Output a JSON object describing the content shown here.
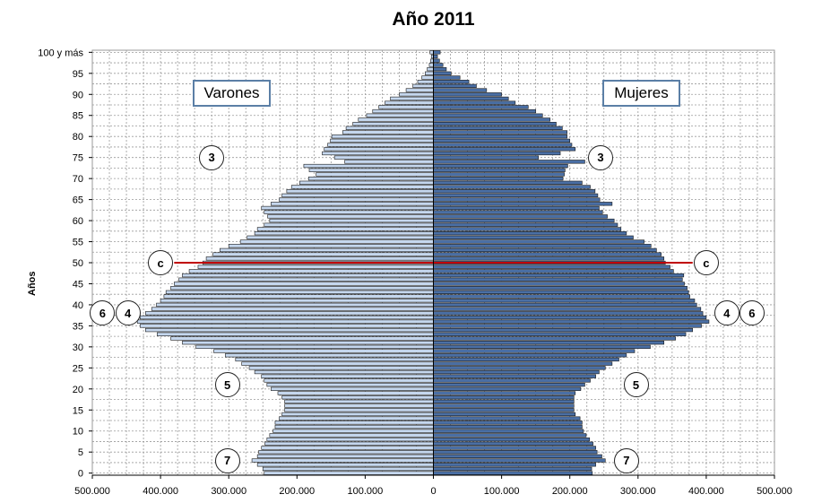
{
  "chart_data": {
    "type": "bar",
    "title": "Año 2011",
    "ylabel": "Años",
    "x_tick_labels": [
      "500.000",
      "400.000",
      "300.000",
      "200.000",
      "100.000",
      "0",
      "100.000",
      "200.000",
      "300.000",
      "400.000",
      "500.000"
    ],
    "y_tick_labels": [
      "0",
      "5",
      "10",
      "15",
      "20",
      "25",
      "30",
      "35",
      "40",
      "45",
      "50",
      "55",
      "60",
      "65",
      "70",
      "75",
      "80",
      "85",
      "90",
      "95",
      "100 y más"
    ],
    "xlim": [
      -500000,
      500000
    ],
    "ylim": [
      0,
      100
    ],
    "grid": true,
    "ages": [
      0,
      1,
      2,
      3,
      4,
      5,
      6,
      7,
      8,
      9,
      10,
      11,
      12,
      13,
      14,
      15,
      16,
      17,
      18,
      19,
      20,
      21,
      22,
      23,
      24,
      25,
      26,
      27,
      28,
      29,
      30,
      31,
      32,
      33,
      34,
      35,
      36,
      37,
      38,
      39,
      40,
      41,
      42,
      43,
      44,
      45,
      46,
      47,
      48,
      49,
      50,
      51,
      52,
      53,
      54,
      55,
      56,
      57,
      58,
      59,
      60,
      61,
      62,
      63,
      64,
      65,
      66,
      67,
      68,
      69,
      70,
      71,
      72,
      73,
      74,
      75,
      76,
      77,
      78,
      79,
      80,
      81,
      82,
      83,
      84,
      85,
      86,
      87,
      88,
      89,
      90,
      91,
      92,
      93,
      94,
      95,
      96,
      97,
      98,
      99,
      100
    ],
    "series": [
      {
        "name": "Varones",
        "color": "#c5d7ee",
        "values": [
          248000,
          250000,
          258000,
          266000,
          258000,
          256000,
          252000,
          247000,
          244000,
          240000,
          235000,
          232000,
          232000,
          226000,
          222000,
          218000,
          218000,
          218000,
          222000,
          228000,
          238000,
          244000,
          248000,
          252000,
          262000,
          270000,
          281000,
          290000,
          305000,
          322000,
          348000,
          368000,
          385000,
          405000,
          422000,
          430000,
          434000,
          430000,
          422000,
          413000,
          406000,
          400000,
          395000,
          392000,
          385000,
          380000,
          373000,
          368000,
          358000,
          345000,
          338000,
          333000,
          323000,
          313000,
          300000,
          283000,
          273000,
          262000,
          258000,
          248000,
          240000,
          243000,
          248000,
          252000,
          238000,
          226000,
          222000,
          215000,
          208000,
          196000,
          183000,
          172000,
          182000,
          190000,
          130000,
          145000,
          163000,
          160000,
          155000,
          151000,
          149000,
          133000,
          128000,
          118000,
          110000,
          98000,
          89000,
          80000,
          71000,
          63000,
          50000,
          40000,
          30000,
          23000,
          17000,
          12000,
          9000,
          6000,
          4000,
          3000,
          5000
        ]
      },
      {
        "name": "Mujeres",
        "color": "#4a6fa5",
        "values": [
          233000,
          232000,
          238000,
          252000,
          247000,
          240000,
          238000,
          234000,
          229000,
          224000,
          220000,
          218000,
          218000,
          215000,
          208000,
          206000,
          206000,
          206000,
          206000,
          208000,
          216000,
          222000,
          230000,
          238000,
          243000,
          252000,
          262000,
          272000,
          283000,
          295000,
          318000,
          338000,
          355000,
          370000,
          380000,
          393000,
          404000,
          400000,
          395000,
          392000,
          386000,
          383000,
          376000,
          374000,
          372000,
          368000,
          365000,
          367000,
          352000,
          347000,
          340000,
          338000,
          334000,
          327000,
          319000,
          309000,
          293000,
          283000,
          275000,
          270000,
          265000,
          255000,
          248000,
          243000,
          262000,
          244000,
          241000,
          237000,
          230000,
          218000,
          190000,
          192000,
          193000,
          197000,
          222000,
          154000,
          186000,
          208000,
          203000,
          200000,
          196000,
          196000,
          189000,
          180000,
          171000,
          160000,
          150000,
          139000,
          120000,
          110000,
          100000,
          78000,
          63000,
          52000,
          39000,
          26000,
          19000,
          14000,
          9000,
          6000,
          10000
        ]
      }
    ],
    "reference_line": {
      "age": 50,
      "color": "#c00000"
    },
    "annotations": [
      {
        "label": "3",
        "side": "left",
        "age": 75,
        "x": -325000
      },
      {
        "label": "3",
        "side": "right",
        "age": 75,
        "x": 245000
      },
      {
        "label": "c",
        "side": "left",
        "age": 50,
        "x": -400000
      },
      {
        "label": "c",
        "side": "right",
        "age": 50,
        "x": 400000
      },
      {
        "label": "6",
        "side": "left",
        "age": 38,
        "x": -485000
      },
      {
        "label": "4",
        "side": "left",
        "age": 38,
        "x": -448000
      },
      {
        "label": "4",
        "side": "right",
        "age": 38,
        "x": 430000
      },
      {
        "label": "6",
        "side": "right",
        "age": 38,
        "x": 467000
      },
      {
        "label": "5",
        "side": "left",
        "age": 21,
        "x": -302000
      },
      {
        "label": "5",
        "side": "right",
        "age": 21,
        "x": 297000
      },
      {
        "label": "7",
        "side": "left",
        "age": 3,
        "x": -302000
      },
      {
        "label": "7",
        "side": "right",
        "age": 3,
        "x": 283000
      }
    ]
  }
}
